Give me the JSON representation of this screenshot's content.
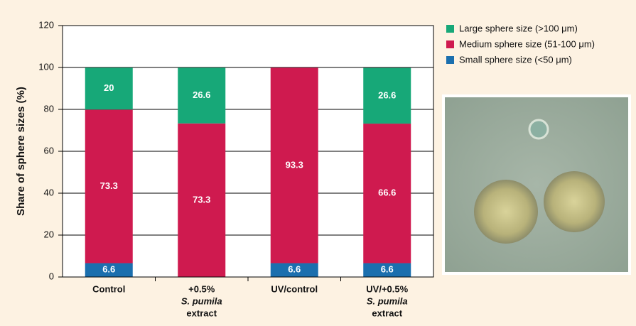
{
  "chart_data": {
    "type": "stacked_bar",
    "ylabel": "Share of sphere sizes (%)",
    "categories": [
      [
        "Control"
      ],
      [
        "+0.5%",
        "S. pumila",
        "extract"
      ],
      [
        "UV/control"
      ],
      [
        "UV/+0.5%",
        "S. pumila",
        "extract"
      ]
    ],
    "series": [
      {
        "name": "Small sphere size (<50 μm)",
        "color": "#1b6fae",
        "values": [
          6.6,
          null,
          6.6,
          6.6
        ]
      },
      {
        "name": "Medium sphere size (51-100 μm)",
        "color": "#cf1a4f",
        "values": [
          73.3,
          73.3,
          93.3,
          66.6
        ]
      },
      {
        "name": "Large sphere size (>100 μm)",
        "color": "#17a878",
        "values": [
          20,
          26.6,
          null,
          26.6
        ]
      }
    ],
    "ylim": [
      0,
      120
    ],
    "yticks": [
      0,
      20,
      40,
      60,
      80,
      100,
      120
    ],
    "grid": true
  }
}
